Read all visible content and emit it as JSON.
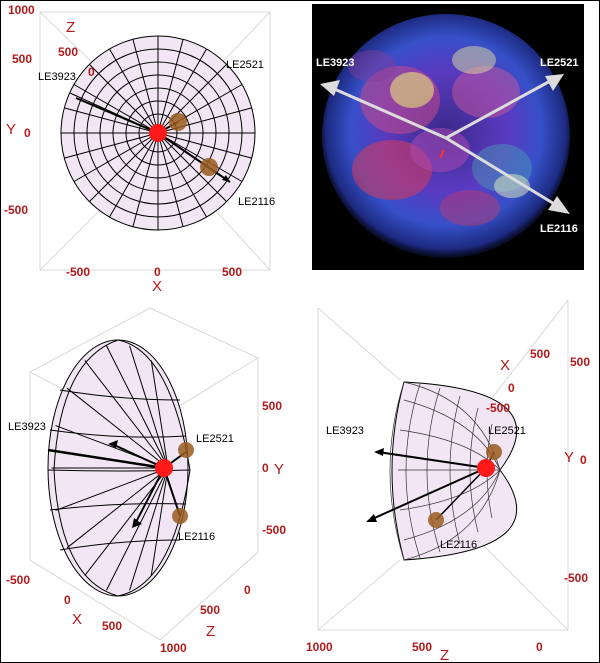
{
  "labels": {
    "le3923": "LE3923",
    "le2521": "LE2521",
    "le2116": "LE2116"
  },
  "panel_top_left": {
    "z_axis": "Z",
    "x_axis": "X",
    "y_axis": "Y",
    "z_ticks": [
      "500",
      "0"
    ],
    "y_ticks": [
      "1000",
      "500",
      "0",
      "-500"
    ],
    "x_ticks": [
      "-500",
      "0",
      "500"
    ]
  },
  "panel_bottom_left": {
    "y_axis": "Y",
    "x_axis": "X",
    "z_axis": "Z",
    "y_ticks": [
      "500",
      "0",
      "-500"
    ],
    "x_ticks": [
      "-500",
      "0",
      "500"
    ],
    "z_ticks": [
      "0",
      "500",
      "1000"
    ]
  },
  "panel_bottom_right": {
    "x_axis": "X",
    "y_axis": "Y",
    "z_axis": "Z",
    "x_ticks": [
      "500",
      "0",
      "-500"
    ],
    "y_ticks": [
      "500",
      "0",
      "-500"
    ],
    "z_ticks": [
      "1000",
      "500",
      "0"
    ]
  },
  "colors": {
    "axis_text": "#b11a1a",
    "center_marker": "#ff1a1a",
    "echo_marker": "#9a5a1e",
    "surface_tint": "#f2e6f4"
  }
}
